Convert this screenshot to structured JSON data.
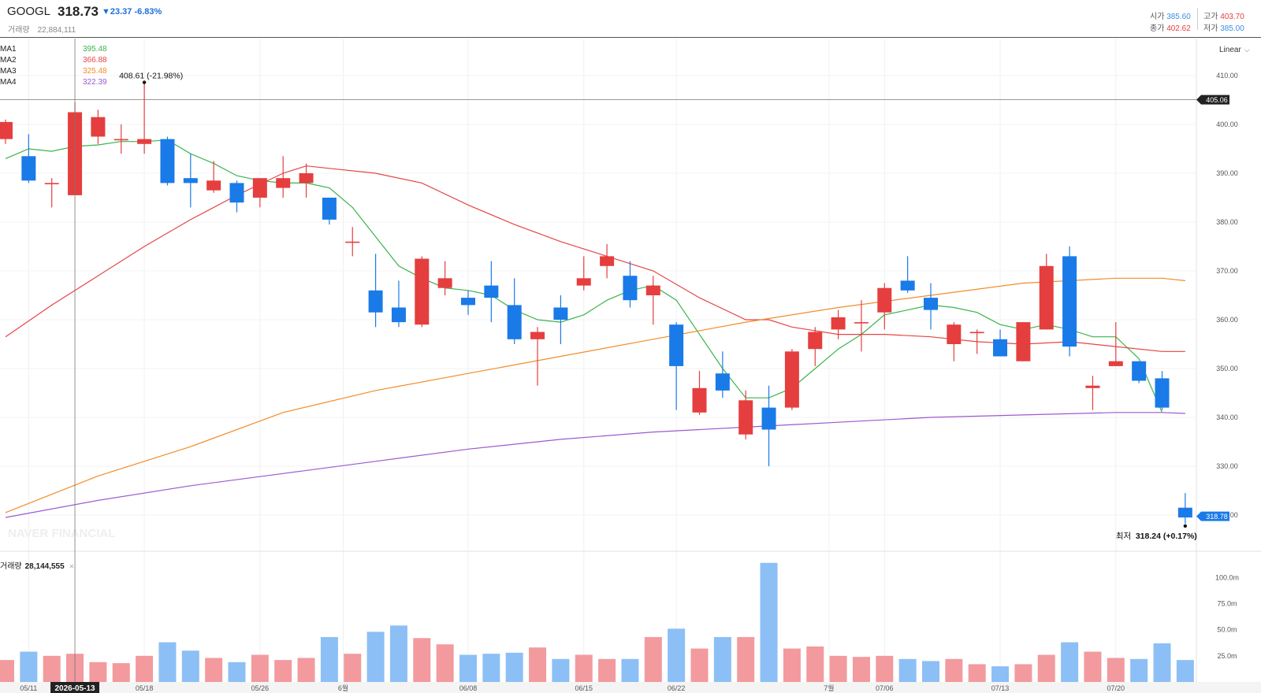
{
  "header": {
    "ticker": "GOOGL",
    "price": "318.73",
    "change": "▼23.37  -6.83%",
    "volume_label": "거래량",
    "volume_value": "22,884,111",
    "open_label": "시가",
    "open_value": "385.60",
    "high_label": "고가",
    "high_value": "403.70",
    "close_label": "종가",
    "close_value": "402.62",
    "low_label": "저가",
    "low_value": "385.00"
  },
  "scale_selector": {
    "label": "Linear"
  },
  "ma_legend": [
    {
      "label": "MA1",
      "value": "395.48",
      "color": "#3bb44a"
    },
    {
      "label": "MA2",
      "value": "366.88",
      "color": "#e64545"
    },
    {
      "label": "MA3",
      "value": "325.48",
      "color": "#f28c28"
    },
    {
      "label": "MA4",
      "value": "322.39",
      "color": "#9b59d0"
    }
  ],
  "volume_legend": {
    "label": "거래량",
    "value": "28,144,555"
  },
  "watermark": "NAVER FINANCIAL",
  "colors": {
    "up": "#e53e3e",
    "down": "#1a7ae8",
    "vol_up": "#f29a9e",
    "vol_down": "#8cbff5"
  },
  "chart_data": {
    "type": "candlestick",
    "price_axis": {
      "ylim": [
        316,
        413
      ],
      "ticks": [
        "410.00",
        "400.00",
        "390.00",
        "380.00",
        "370.00",
        "360.00",
        "350.00",
        "340.00",
        "330.00",
        "320.00"
      ]
    },
    "volume_axis": {
      "ylim": [
        0,
        120
      ],
      "ticks": [
        "100.0m",
        "75.0m",
        "50.0m",
        "25.0m"
      ]
    },
    "x_ticks": [
      {
        "label": "05/11",
        "index": 1
      },
      {
        "label": "05/18",
        "index": 6
      },
      {
        "label": "05/26",
        "index": 11
      },
      {
        "label": "6월",
        "index": 14.6
      },
      {
        "label": "06/08",
        "index": 20
      },
      {
        "label": "06/15",
        "index": 25
      },
      {
        "label": "06/22",
        "index": 29
      },
      {
        "label": "7월",
        "index": 35.6
      },
      {
        "label": "07/06",
        "index": 38
      },
      {
        "label": "07/13",
        "index": 43
      },
      {
        "label": "07/20",
        "index": 48
      }
    ],
    "crosshair": {
      "index": 3,
      "date_label": "2026-05-13",
      "price": 405.06,
      "price_label": "405.06"
    },
    "last_price_label": "318.78",
    "annotations": [
      {
        "text": "408.61 (-21.98%)",
        "index": 6,
        "price": 408.61,
        "kind": "high"
      },
      {
        "label": "최저",
        "text": "318.24 (+0.17%)",
        "index": 51,
        "price": 318.24,
        "kind": "low"
      }
    ],
    "candles": [
      {
        "o": 397,
        "h": 401,
        "l": 396,
        "c": 400.5
      },
      {
        "o": 393.5,
        "h": 398,
        "l": 388,
        "c": 388.5
      },
      {
        "o": 388,
        "h": 389,
        "l": 383,
        "c": 388
      },
      {
        "o": 385.5,
        "h": 404.5,
        "l": 385.5,
        "c": 402.5
      },
      {
        "o": 397.5,
        "h": 403,
        "l": 396,
        "c": 401.5
      },
      {
        "o": 397,
        "h": 400,
        "l": 394,
        "c": 397
      },
      {
        "o": 396,
        "h": 408.61,
        "l": 394,
        "c": 397
      },
      {
        "o": 397,
        "h": 397.5,
        "l": 387.5,
        "c": 388
      },
      {
        "o": 389,
        "h": 394,
        "l": 383,
        "c": 388
      },
      {
        "o": 386.5,
        "h": 392.5,
        "l": 386,
        "c": 388.5
      },
      {
        "o": 388,
        "h": 388.5,
        "l": 382,
        "c": 384
      },
      {
        "o": 385,
        "h": 389,
        "l": 383,
        "c": 389
      },
      {
        "o": 387,
        "h": 393.5,
        "l": 385,
        "c": 389
      },
      {
        "o": 388,
        "h": 392,
        "l": 385,
        "c": 390
      },
      {
        "o": 385,
        "h": 385,
        "l": 379.5,
        "c": 380.5
      },
      {
        "o": 376,
        "h": 379,
        "l": 373,
        "c": 376
      },
      {
        "o": 366,
        "h": 373.5,
        "l": 358.5,
        "c": 361.5
      },
      {
        "o": 362.5,
        "h": 368,
        "l": 358.5,
        "c": 359.5
      },
      {
        "o": 359,
        "h": 373,
        "l": 358.5,
        "c": 372.5
      },
      {
        "o": 366.5,
        "h": 372,
        "l": 365,
        "c": 368.5
      },
      {
        "o": 364.5,
        "h": 366,
        "l": 361,
        "c": 363
      },
      {
        "o": 367,
        "h": 372,
        "l": 359.5,
        "c": 364.5
      },
      {
        "o": 363,
        "h": 368.5,
        "l": 355,
        "c": 356
      },
      {
        "o": 356,
        "h": 358.5,
        "l": 346.5,
        "c": 357.5
      },
      {
        "o": 362.5,
        "h": 365,
        "l": 355,
        "c": 360
      },
      {
        "o": 367,
        "h": 373,
        "l": 366,
        "c": 368.5
      },
      {
        "o": 371,
        "h": 375.5,
        "l": 368.5,
        "c": 373
      },
      {
        "o": 369,
        "h": 372,
        "l": 362.5,
        "c": 364
      },
      {
        "o": 365,
        "h": 369,
        "l": 359,
        "c": 367
      },
      {
        "o": 359,
        "h": 359.5,
        "l": 341.5,
        "c": 350.5
      },
      {
        "o": 341,
        "h": 349.5,
        "l": 340.5,
        "c": 346
      },
      {
        "o": 349,
        "h": 353.5,
        "l": 344,
        "c": 345.5
      },
      {
        "o": 336.5,
        "h": 345.5,
        "l": 335.5,
        "c": 343.5
      },
      {
        "o": 342,
        "h": 346.5,
        "l": 330,
        "c": 337.5
      },
      {
        "o": 342,
        "h": 354,
        "l": 341.5,
        "c": 353.5
      },
      {
        "o": 354,
        "h": 358.5,
        "l": 350.5,
        "c": 357.5
      },
      {
        "o": 358,
        "h": 362,
        "l": 356,
        "c": 360.5
      },
      {
        "o": 359.5,
        "h": 364,
        "l": 353.5,
        "c": 359.5
      },
      {
        "o": 361.5,
        "h": 367.5,
        "l": 358,
        "c": 366.5
      },
      {
        "o": 368,
        "h": 373,
        "l": 365.5,
        "c": 366
      },
      {
        "o": 364.5,
        "h": 367.5,
        "l": 358,
        "c": 362
      },
      {
        "o": 355,
        "h": 359.5,
        "l": 351.5,
        "c": 359
      },
      {
        "o": 357.5,
        "h": 358,
        "l": 353,
        "c": 357.5
      },
      {
        "o": 356,
        "h": 358,
        "l": 352.5,
        "c": 352.5
      },
      {
        "o": 351.5,
        "h": 359.5,
        "l": 351.5,
        "c": 359.5
      },
      {
        "o": 358,
        "h": 373.5,
        "l": 358,
        "c": 371
      },
      {
        "o": 373,
        "h": 375,
        "l": 352.5,
        "c": 354.5
      },
      {
        "o": 346,
        "h": 348.5,
        "l": 341.5,
        "c": 346.5
      },
      {
        "o": 350.5,
        "h": 359.5,
        "l": 350.5,
        "c": 351.5
      },
      {
        "o": 351.5,
        "h": 351.5,
        "l": 347,
        "c": 347.5
      },
      {
        "o": 348,
        "h": 349.5,
        "l": 341.5,
        "c": 342
      },
      {
        "o": 321.5,
        "h": 324.5,
        "l": 318.24,
        "c": 319.5
      }
    ],
    "volumes": [
      21,
      29,
      25,
      27,
      19,
      18,
      25,
      38,
      30,
      23,
      19,
      26,
      21,
      23,
      43,
      27,
      48,
      54,
      42,
      36,
      26,
      27,
      28,
      33,
      22,
      26,
      22,
      22,
      43,
      51,
      32,
      43,
      43,
      114,
      32,
      34,
      25,
      24,
      25,
      22,
      20,
      22,
      17,
      15,
      17,
      26,
      38,
      29,
      23,
      22,
      37,
      21
    ],
    "ma": [
      {
        "name": "MA1",
        "color": "#3bb44a",
        "points": [
          [
            0,
            393
          ],
          [
            1,
            395
          ],
          [
            2,
            394.5
          ],
          [
            3,
            395.5
          ],
          [
            4,
            395.8
          ],
          [
            5,
            396.5
          ],
          [
            6,
            396.5
          ],
          [
            7,
            396.8
          ],
          [
            8,
            394
          ],
          [
            9,
            392
          ],
          [
            10,
            389.5
          ],
          [
            11,
            388.5
          ],
          [
            12,
            388
          ],
          [
            13,
            388
          ],
          [
            14,
            387
          ],
          [
            15,
            383
          ],
          [
            16,
            377
          ],
          [
            17,
            371
          ],
          [
            18,
            368.5
          ],
          [
            19,
            366.5
          ],
          [
            20,
            366
          ],
          [
            21,
            365
          ],
          [
            22,
            362
          ],
          [
            23,
            360
          ],
          [
            24,
            359.5
          ],
          [
            25,
            361
          ],
          [
            26,
            364
          ],
          [
            27,
            366
          ],
          [
            28,
            367
          ],
          [
            29,
            364
          ],
          [
            30,
            357
          ],
          [
            31,
            350
          ],
          [
            32,
            344
          ],
          [
            33,
            344
          ],
          [
            34,
            346
          ],
          [
            35,
            350
          ],
          [
            36,
            354
          ],
          [
            37,
            357
          ],
          [
            38,
            361
          ],
          [
            39,
            362
          ],
          [
            40,
            363
          ],
          [
            41,
            362.5
          ],
          [
            42,
            361.5
          ],
          [
            43,
            359
          ],
          [
            44,
            358
          ],
          [
            45,
            359
          ],
          [
            46,
            358
          ],
          [
            47,
            356.5
          ],
          [
            48,
            356.5
          ],
          [
            49,
            352
          ],
          [
            50,
            341
          ]
        ]
      },
      {
        "name": "MA2",
        "color": "#e64545",
        "points": [
          [
            0,
            356.5
          ],
          [
            2,
            363
          ],
          [
            4,
            369
          ],
          [
            6,
            375
          ],
          [
            8,
            380.5
          ],
          [
            10,
            385.5
          ],
          [
            12,
            390
          ],
          [
            13,
            391.5
          ],
          [
            14,
            391
          ],
          [
            16,
            390
          ],
          [
            18,
            388
          ],
          [
            20,
            383.5
          ],
          [
            22,
            379.5
          ],
          [
            24,
            376
          ],
          [
            26,
            373
          ],
          [
            28,
            370
          ],
          [
            30,
            364.5
          ],
          [
            32,
            360
          ],
          [
            33,
            360
          ],
          [
            34,
            358.5
          ],
          [
            36,
            357
          ],
          [
            38,
            357
          ],
          [
            40,
            356.5
          ],
          [
            42,
            355.5
          ],
          [
            44,
            355
          ],
          [
            46,
            355.5
          ],
          [
            48,
            354.5
          ],
          [
            50,
            353.5
          ],
          [
            51,
            353.5
          ]
        ]
      },
      {
        "name": "MA3",
        "color": "#f28c28",
        "points": [
          [
            0,
            320.5
          ],
          [
            4,
            328
          ],
          [
            8,
            334
          ],
          [
            12,
            341
          ],
          [
            16,
            345.5
          ],
          [
            20,
            349
          ],
          [
            24,
            352.5
          ],
          [
            28,
            356
          ],
          [
            32,
            359.5
          ],
          [
            36,
            362.5
          ],
          [
            40,
            365
          ],
          [
            44,
            367.5
          ],
          [
            48,
            368.5
          ],
          [
            50,
            368.5
          ],
          [
            51,
            368
          ]
        ]
      },
      {
        "name": "MA4",
        "color": "#9b59d0",
        "points": [
          [
            0,
            319.5
          ],
          [
            4,
            323
          ],
          [
            8,
            326
          ],
          [
            12,
            328.5
          ],
          [
            16,
            331
          ],
          [
            20,
            333.5
          ],
          [
            24,
            335.5
          ],
          [
            28,
            337
          ],
          [
            32,
            338
          ],
          [
            36,
            339
          ],
          [
            40,
            340
          ],
          [
            44,
            340.5
          ],
          [
            48,
            341
          ],
          [
            50,
            341
          ],
          [
            51,
            340.8
          ]
        ]
      }
    ]
  }
}
